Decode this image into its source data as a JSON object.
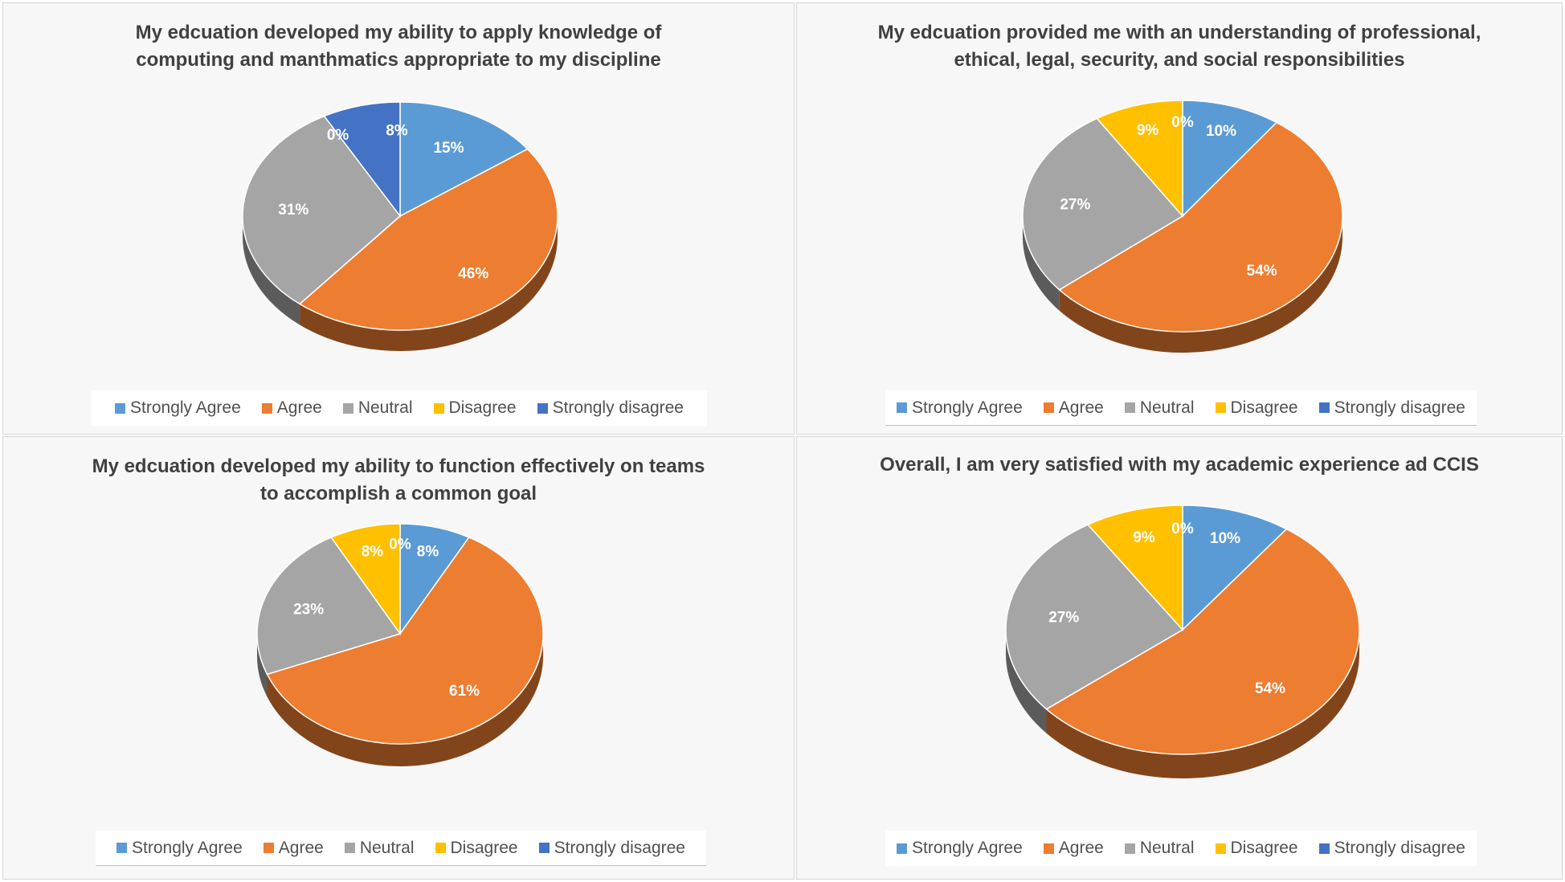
{
  "colors": {
    "strongly_agree": "#5b9bd5",
    "agree": "#ed7d31",
    "neutral": "#a5a5a5",
    "disagree": "#ffc000",
    "strongly_disagree": "#4472c4"
  },
  "legend_labels": [
    "Strongly Agree",
    "Agree",
    "Neutral",
    "Disagree",
    "Strongly disagree"
  ],
  "chart_data": [
    {
      "type": "pie",
      "title_lines": [
        "My edcuation developed my ability to apply knowledge of",
        "computing and manthmatics appropriate to my discipline"
      ],
      "categories": [
        "Strongly Agree",
        "Agree",
        "Neutral",
        "Disagree",
        "Strongly disagree"
      ],
      "values": [
        15,
        46,
        31,
        0,
        8
      ],
      "labels": [
        "15%",
        "46%",
        "31%",
        "0%",
        "8%"
      ],
      "legend": "bottom"
    },
    {
      "type": "pie",
      "title_lines": [
        "My edcuation provided me with an understanding of professional,",
        "ethical, legal, security, and social responsibilities"
      ],
      "categories": [
        "Strongly Agree",
        "Agree",
        "Neutral",
        "Disagree",
        "Strongly disagree"
      ],
      "values": [
        10,
        54,
        27,
        9,
        0
      ],
      "labels": [
        "10%",
        "54%",
        "27%",
        "9%",
        "0%"
      ],
      "legend": "bottom"
    },
    {
      "type": "pie",
      "title_lines": [
        "My edcuation developed my ability to function effectively on teams",
        "to accomplish a common goal"
      ],
      "categories": [
        "Strongly Agree",
        "Agree",
        "Neutral",
        "Disagree",
        "Strongly disagree"
      ],
      "values": [
        8,
        61,
        23,
        8,
        0
      ],
      "labels": [
        "8%",
        "61%",
        "23%",
        "8%",
        "0%"
      ],
      "legend": "bottom"
    },
    {
      "type": "pie",
      "title_lines": [
        "Overall, I am very satisfied with my academic experience ad CCIS"
      ],
      "categories": [
        "Strongly Agree",
        "Agree",
        "Neutral",
        "Disagree",
        "Strongly disagree"
      ],
      "values": [
        10,
        54,
        27,
        9,
        0
      ],
      "labels": [
        "10%",
        "54%",
        "27%",
        "9%",
        "0%"
      ],
      "legend": "bottom"
    }
  ]
}
